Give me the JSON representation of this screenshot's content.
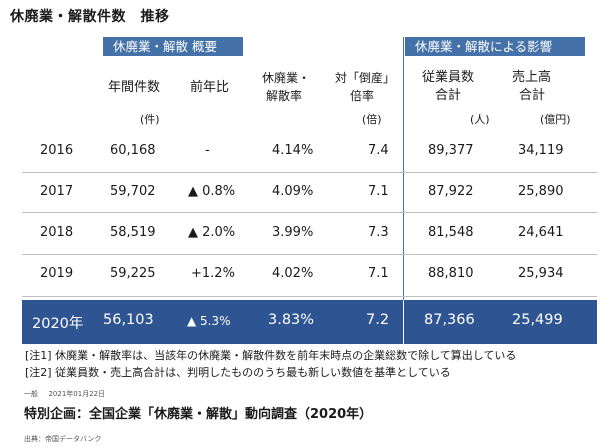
{
  "title": "休廃業・解散件数　推移",
  "groups": {
    "overview": "休廃業・解散 概要",
    "impact": "休廃業・解散による影響"
  },
  "columns": {
    "annual_count": "年間件数",
    "yoy": "前年比",
    "rate_line1": "休廃業・",
    "rate_line2": "解散率",
    "ratio_line1": "対「倒産」",
    "ratio_line2": "倍率",
    "employees_line1": "従業員数",
    "employees_line2": "合計",
    "sales_line1": "売上高",
    "sales_line2": "合計"
  },
  "units": {
    "annual_count": "(件)",
    "ratio": "(倍)",
    "employees": "(人)",
    "sales": "(億円)"
  },
  "rows": [
    {
      "year": "2016",
      "count": "60,168",
      "yoy": "-",
      "rate": "4.14%",
      "ratio": "7.4",
      "employees": "89,377",
      "sales": "34,119"
    },
    {
      "year": "2017",
      "count": "59,702",
      "yoy": "▲ 0.8%",
      "rate": "4.09%",
      "ratio": "7.1",
      "employees": "87,922",
      "sales": "25,890"
    },
    {
      "year": "2018",
      "count": "58,519",
      "yoy": "▲ 2.0%",
      "rate": "3.99%",
      "ratio": "7.3",
      "employees": "81,548",
      "sales": "24,641"
    },
    {
      "year": "2019",
      "count": "59,225",
      "yoy": "+1.2%",
      "rate": "4.02%",
      "ratio": "7.1",
      "employees": "88,810",
      "sales": "25,934"
    }
  ],
  "highlight": {
    "year": "2020年",
    "count": "56,103",
    "yoy": "▲ 5.3%",
    "rate": "3.83%",
    "ratio": "7.2",
    "employees": "87,366",
    "sales": "25,499"
  },
  "notes": [
    "[注1] 休廃業・解散率は、当該年の休廃業・解散件数を前年末時点の企業総数で除して算出している",
    "[注2] 従業員数・売上高合計は、判明したもののうち最も新しい数値を基準としている"
  ],
  "article": {
    "category": "一般",
    "date": "2021年01月22日",
    "title": "特別企画：全国企業「休廃業・解散」動向調査（2020年）",
    "source": "出典：帝国データバンク"
  },
  "colors": {
    "header_blue": "#4472a8",
    "highlight_blue": "#2e5592"
  }
}
